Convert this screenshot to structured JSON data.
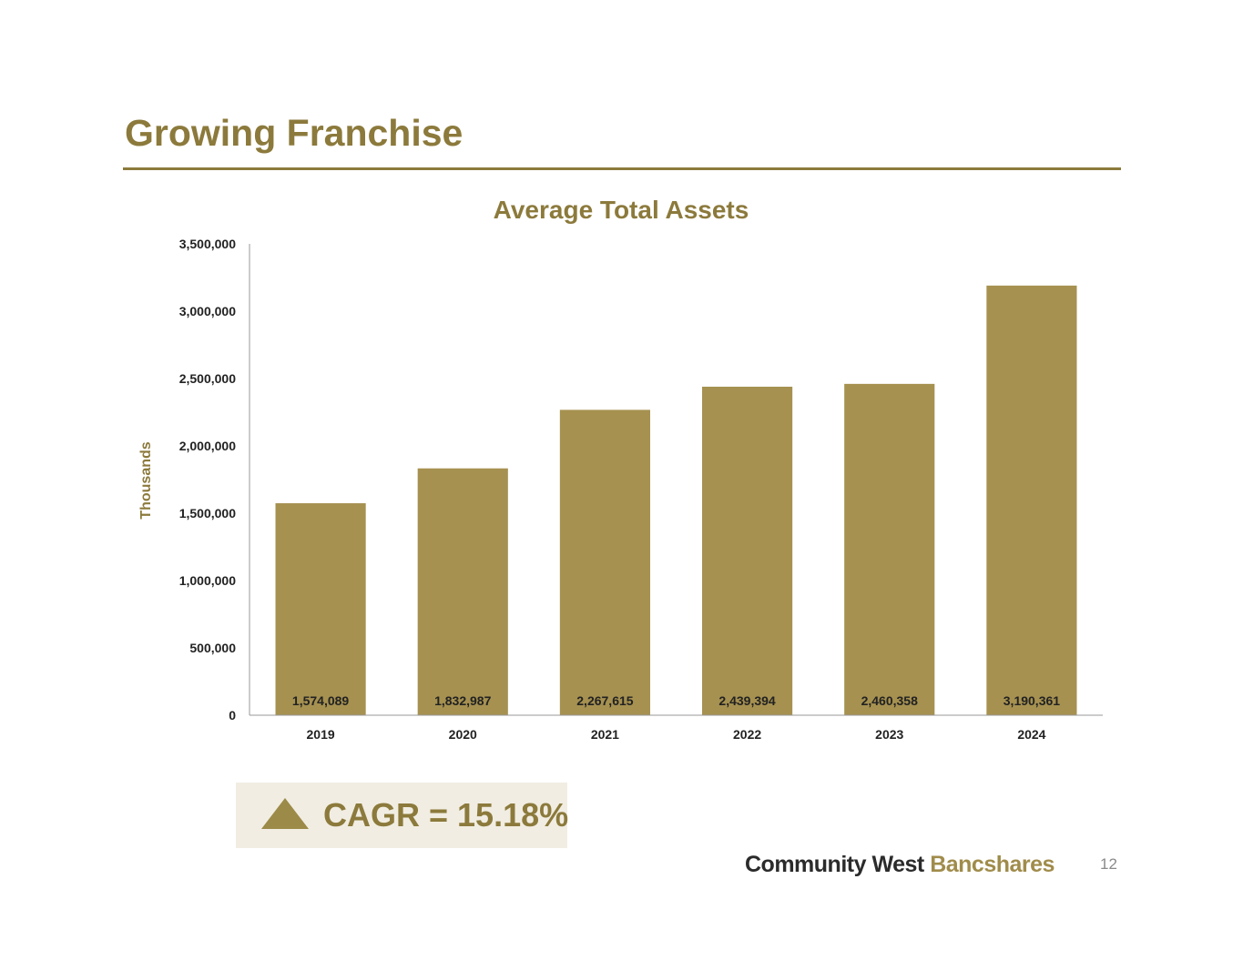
{
  "slide": {
    "title": "Growing Franchise",
    "page_number": "12"
  },
  "cagr": {
    "icon": "up-triangle-icon",
    "text": "CAGR = 15.18%"
  },
  "logo": {
    "word1": "Community West",
    "word2": "Bancshares"
  },
  "colors": {
    "accent": "#8c7a3c",
    "bar": "#a69150",
    "cagr_background": "#f1ede2",
    "logo_dark": "#2b2b2b"
  },
  "chart_data": {
    "type": "bar",
    "title": "Average Total Assets",
    "ylabel": "Thousands",
    "xlabel": "",
    "categories": [
      "2019",
      "2020",
      "2021",
      "2022",
      "2023",
      "2024"
    ],
    "values": [
      1574089,
      1832987,
      2267615,
      2439394,
      2460358,
      3190361
    ],
    "data_labels": [
      "1,574,089",
      "1,832,987",
      "2,267,615",
      "2,439,394",
      "2,460,358",
      "3,190,361"
    ],
    "ylim": [
      0,
      3500000
    ],
    "yticks": [
      0,
      500000,
      1000000,
      1500000,
      2000000,
      2500000,
      3000000,
      3500000
    ],
    "ytick_labels": [
      "0",
      "500,000",
      "1,000,000",
      "1,500,000",
      "2,000,000",
      "2,500,000",
      "3,000,000",
      "3,500,000"
    ],
    "grid": false,
    "legend": "none",
    "data_label_position": "inside-base"
  }
}
